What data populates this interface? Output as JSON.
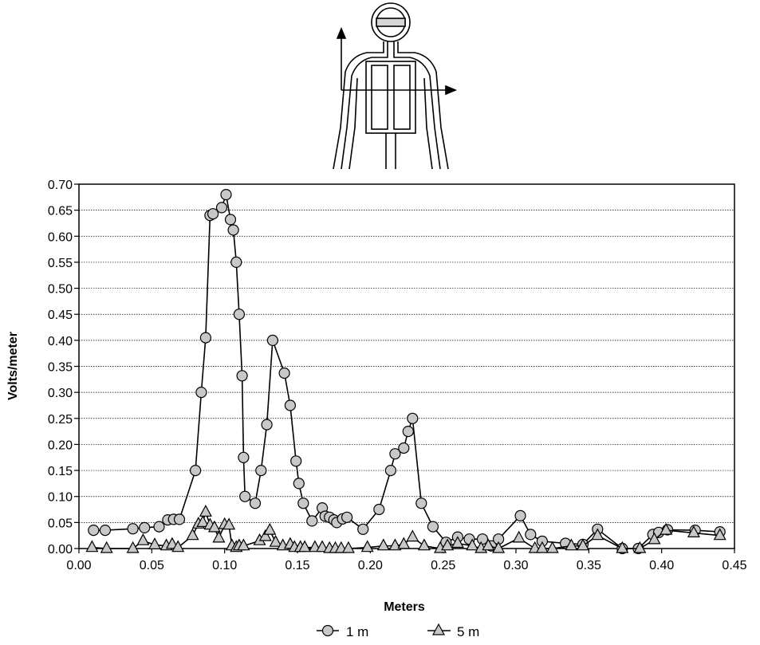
{
  "chart_data": {
    "type": "line",
    "xlabel": "Meters",
    "ylabel": "Volts/meter",
    "xlim": [
      0,
      0.45
    ],
    "ylim": [
      0,
      0.7
    ],
    "x_ticks": [
      "0.00",
      "0.05",
      "0.10",
      "0.15",
      "0.20",
      "0.25",
      "0.30",
      "0.35",
      "0.40",
      "0.45"
    ],
    "y_ticks": [
      "0.00",
      "0.05",
      "0.10",
      "0.15",
      "0.20",
      "0.25",
      "0.30",
      "0.35",
      "0.40",
      "0.45",
      "0.50",
      "0.55",
      "0.60",
      "0.65",
      "0.70"
    ],
    "grid": "horizontal",
    "legend_position": "bottom",
    "series": [
      {
        "name": "1 m",
        "marker": "circle",
        "color": "#c8c8c8",
        "points": [
          [
            0.01,
            0.035
          ],
          [
            0.018,
            0.035
          ],
          [
            0.037,
            0.038
          ],
          [
            0.045,
            0.04
          ],
          [
            0.055,
            0.042
          ],
          [
            0.061,
            0.055
          ],
          [
            0.065,
            0.056
          ],
          [
            0.069,
            0.056
          ],
          [
            0.08,
            0.15
          ],
          [
            0.084,
            0.3
          ],
          [
            0.087,
            0.405
          ],
          [
            0.09,
            0.64
          ],
          [
            0.092,
            0.643
          ],
          [
            0.098,
            0.655
          ],
          [
            0.101,
            0.68
          ],
          [
            0.104,
            0.632
          ],
          [
            0.106,
            0.612
          ],
          [
            0.108,
            0.55
          ],
          [
            0.11,
            0.45
          ],
          [
            0.112,
            0.332
          ],
          [
            0.113,
            0.175
          ],
          [
            0.114,
            0.1
          ],
          [
            0.121,
            0.087
          ],
          [
            0.125,
            0.15
          ],
          [
            0.129,
            0.238
          ],
          [
            0.133,
            0.4
          ],
          [
            0.141,
            0.337
          ],
          [
            0.145,
            0.275
          ],
          [
            0.149,
            0.168
          ],
          [
            0.151,
            0.125
          ],
          [
            0.154,
            0.087
          ],
          [
            0.16,
            0.053
          ],
          [
            0.167,
            0.078
          ],
          [
            0.169,
            0.062
          ],
          [
            0.172,
            0.06
          ],
          [
            0.175,
            0.055
          ],
          [
            0.177,
            0.05
          ],
          [
            0.181,
            0.057
          ],
          [
            0.184,
            0.06
          ],
          [
            0.195,
            0.037
          ],
          [
            0.206,
            0.075
          ],
          [
            0.214,
            0.15
          ],
          [
            0.217,
            0.182
          ],
          [
            0.223,
            0.193
          ],
          [
            0.226,
            0.225
          ],
          [
            0.229,
            0.25
          ],
          [
            0.235,
            0.087
          ],
          [
            0.243,
            0.042
          ],
          [
            0.252,
            0.012
          ],
          [
            0.26,
            0.022
          ],
          [
            0.268,
            0.018
          ],
          [
            0.277,
            0.018
          ],
          [
            0.283,
            0.005
          ],
          [
            0.288,
            0.018
          ],
          [
            0.303,
            0.063
          ],
          [
            0.31,
            0.027
          ],
          [
            0.318,
            0.014
          ],
          [
            0.334,
            0.01
          ],
          [
            0.346,
            0.008
          ],
          [
            0.356,
            0.037
          ],
          [
            0.373,
            0.0
          ],
          [
            0.384,
            0.0
          ],
          [
            0.394,
            0.027
          ],
          [
            0.398,
            0.031
          ],
          [
            0.404,
            0.036
          ],
          [
            0.423,
            0.035
          ],
          [
            0.44,
            0.032
          ]
        ]
      },
      {
        "name": "5 m",
        "marker": "triangle",
        "color": "#c8c8c8",
        "points": [
          [
            0.009,
            0.002
          ],
          [
            0.019,
            0.0
          ],
          [
            0.037,
            0.0
          ],
          [
            0.044,
            0.015
          ],
          [
            0.052,
            0.007
          ],
          [
            0.06,
            0.005
          ],
          [
            0.064,
            0.008
          ],
          [
            0.068,
            0.002
          ],
          [
            0.078,
            0.025
          ],
          [
            0.082,
            0.047
          ],
          [
            0.085,
            0.05
          ],
          [
            0.087,
            0.07
          ],
          [
            0.09,
            0.045
          ],
          [
            0.093,
            0.04
          ],
          [
            0.096,
            0.02
          ],
          [
            0.1,
            0.046
          ],
          [
            0.103,
            0.045
          ],
          [
            0.105,
            0.005
          ],
          [
            0.108,
            0.002
          ],
          [
            0.11,
            0.005
          ],
          [
            0.113,
            0.005
          ],
          [
            0.124,
            0.015
          ],
          [
            0.128,
            0.023
          ],
          [
            0.131,
            0.035
          ],
          [
            0.135,
            0.012
          ],
          [
            0.14,
            0.005
          ],
          [
            0.145,
            0.008
          ],
          [
            0.148,
            0.002
          ],
          [
            0.152,
            0.002
          ],
          [
            0.155,
            0.002
          ],
          [
            0.162,
            0.002
          ],
          [
            0.167,
            0.002
          ],
          [
            0.172,
            0.0
          ],
          [
            0.176,
            0.0
          ],
          [
            0.18,
            0.0
          ],
          [
            0.185,
            0.0
          ],
          [
            0.198,
            0.002
          ],
          [
            0.209,
            0.005
          ],
          [
            0.217,
            0.005
          ],
          [
            0.223,
            0.008
          ],
          [
            0.229,
            0.022
          ],
          [
            0.237,
            0.005
          ],
          [
            0.248,
            0.0
          ],
          [
            0.253,
            0.005
          ],
          [
            0.26,
            0.01
          ],
          [
            0.27,
            0.005
          ],
          [
            0.276,
            0.0
          ],
          [
            0.281,
            0.005
          ],
          [
            0.288,
            0.0
          ],
          [
            0.302,
            0.02
          ],
          [
            0.313,
            0.0
          ],
          [
            0.318,
            0.0
          ],
          [
            0.325,
            0.0
          ],
          [
            0.338,
            0.005
          ],
          [
            0.346,
            0.005
          ],
          [
            0.356,
            0.025
          ],
          [
            0.373,
            0.0
          ],
          [
            0.385,
            0.0
          ],
          [
            0.395,
            0.017
          ],
          [
            0.403,
            0.035
          ],
          [
            0.422,
            0.03
          ],
          [
            0.44,
            0.025
          ]
        ]
      }
    ]
  }
}
